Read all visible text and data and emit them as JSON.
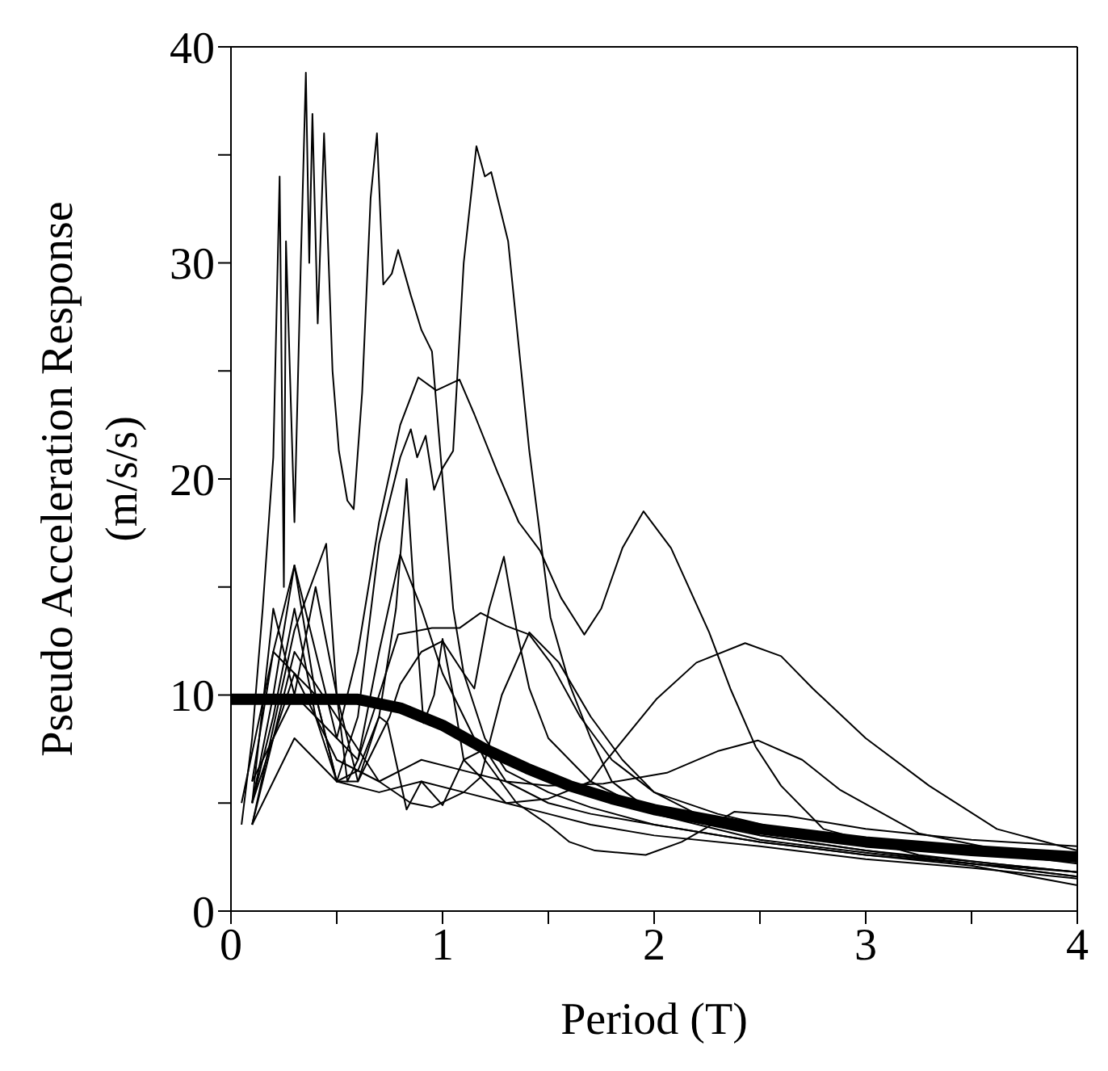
{
  "chart_data": {
    "type": "line",
    "xlabel": "Period (T)",
    "ylabel": "Pseudo Acceleration Response (m/s/s)",
    "xlim": [
      0,
      4
    ],
    "ylim": [
      0,
      40
    ],
    "xticks": [
      0,
      {
        "value": 0.5,
        "label": null
      },
      1,
      {
        "value": 1.5,
        "label": null
      },
      2,
      {
        "value": 2.5,
        "label": null
      },
      3,
      {
        "value": 3.5,
        "label": null
      },
      4
    ],
    "yticks": [
      0,
      {
        "value": 5,
        "label": null
      },
      10,
      {
        "value": 15,
        "label": null
      },
      20,
      {
        "value": 25,
        "label": null
      },
      30,
      {
        "value": 35,
        "label": null
      },
      40
    ],
    "marker": "none",
    "line_style": "solid",
    "series": [
      {
        "color": "#000000",
        "x": [
          0.05,
          0.1,
          0.15,
          0.2,
          0.23,
          0.25,
          0.26,
          0.3,
          0.33,
          0.354,
          0.37,
          0.385,
          0.41,
          0.44,
          0.48,
          0.51,
          0.55,
          0.58,
          0.62,
          0.66,
          0.69,
          0.72,
          0.76,
          0.79,
          0.85,
          0.9,
          0.95,
          1.0,
          1.05,
          1.1,
          1.2,
          1.3,
          1.5,
          1.7,
          2.0,
          2.5,
          3,
          3.5,
          4
        ],
        "values": [
          4,
          8,
          14,
          21,
          34,
          15,
          31,
          18,
          30,
          38.8,
          30,
          36.9,
          27.2,
          36,
          25,
          21.3,
          19,
          18.6,
          24,
          33,
          36,
          29,
          29.5,
          30.6,
          28.5,
          26.9,
          25.9,
          20,
          14,
          11,
          8,
          6.5,
          5.5,
          4.8,
          4,
          3.2,
          2.6,
          2.2,
          1.8
        ]
      },
      {
        "color": "#000000",
        "x": [
          0.05,
          0.2,
          0.4,
          0.5,
          0.6,
          0.7,
          0.8,
          0.85,
          0.88,
          0.92,
          0.96,
          1.0,
          1.05,
          1.1,
          1.16,
          1.2,
          1.23,
          1.31,
          1.41,
          1.51,
          1.6,
          1.7,
          1.8,
          2,
          2.5,
          3,
          3.5,
          4
        ],
        "values": [
          5,
          12,
          10,
          6,
          9,
          17,
          21,
          22.3,
          21,
          22,
          19.5,
          20.5,
          21.3,
          30,
          35.4,
          34,
          34.2,
          31,
          21.3,
          13.6,
          10.5,
          8,
          6,
          4.5,
          3.3,
          2.7,
          2.2,
          1.6
        ]
      },
      {
        "color": "#000000",
        "x": [
          0.1,
          0.3,
          0.5,
          0.6,
          0.7,
          0.8,
          0.885,
          0.97,
          1.08,
          1.15,
          1.26,
          1.36,
          1.46,
          1.56,
          1.67,
          1.75,
          1.85,
          1.95,
          2.08,
          2.26,
          2.36,
          2.48,
          2.6,
          2.8,
          3.25,
          3.6,
          4
        ],
        "values": [
          6,
          10,
          8,
          12,
          18,
          22.5,
          24.7,
          24.1,
          24.6,
          23,
          20.3,
          18,
          16.7,
          14.5,
          12.8,
          14,
          16.8,
          18.5,
          16.8,
          12.9,
          10.3,
          7.6,
          5.8,
          3.8,
          2.6,
          2.2,
          1.8
        ]
      },
      {
        "color": "#000000",
        "x": [
          0.1,
          0.3,
          0.5,
          0.7,
          0.9,
          1.1,
          1.3,
          1.5,
          1.7,
          1.76,
          2.01,
          2.2,
          2.43,
          2.6,
          2.75,
          3.0,
          3.3,
          3.62,
          4
        ],
        "values": [
          4,
          8,
          6,
          5.5,
          6,
          5.5,
          5,
          5.2,
          6,
          6.8,
          9.8,
          11.5,
          12.4,
          11.8,
          10.3,
          8,
          5.8,
          3.8,
          2.8
        ]
      },
      {
        "color": "#000000",
        "x": [
          0.1,
          0.3,
          0.5,
          0.7,
          0.9,
          1.1,
          1.3,
          1.5,
          1.76,
          2.06,
          2.3,
          2.49,
          2.7,
          2.88,
          3.25,
          3.6,
          4
        ],
        "values": [
          5,
          11,
          7,
          6,
          7,
          6.5,
          6,
          5.8,
          5.9,
          6.4,
          7.4,
          7.9,
          7,
          5.6,
          3.6,
          2.9,
          2.3
        ]
      },
      {
        "color": "#000000",
        "x": [
          0.1,
          0.2,
          0.3,
          0.4,
          0.5,
          0.6,
          0.7,
          0.75,
          0.8,
          0.9,
          1.0,
          1.1,
          1.15,
          1.22,
          1.29,
          1.35,
          1.41,
          1.5,
          1.7,
          2,
          2.5,
          3,
          3.5,
          4
        ],
        "values": [
          5,
          14,
          10,
          15,
          10,
          6,
          8,
          9,
          10.5,
          12,
          12.5,
          11,
          10.3,
          14,
          16.4,
          13,
          10.3,
          8,
          6,
          4.5,
          3.5,
          2.8,
          2.3,
          1.8
        ]
      },
      {
        "color": "#000000",
        "x": [
          0.1,
          0.2,
          0.3,
          0.4,
          0.5,
          0.6,
          0.7,
          0.79,
          0.95,
          1.08,
          1.18,
          1.3,
          1.41,
          1.51,
          1.65,
          1.8,
          2,
          2.3,
          2.6,
          3,
          3.5,
          4
        ],
        "values": [
          6,
          12,
          16,
          12,
          8,
          7,
          10,
          12.8,
          13.1,
          13.1,
          13.8,
          13.2,
          12.8,
          11.5,
          9,
          7,
          5.5,
          4.5,
          3.8,
          3.3,
          2.8,
          2.2
        ]
      },
      {
        "color": "#000000",
        "x": [
          0.1,
          0.3,
          0.5,
          0.7,
          0.85,
          0.95,
          1.1,
          1.18,
          1.28,
          1.41,
          1.55,
          1.7,
          1.85,
          2,
          2.2,
          2.5,
          3,
          3.5,
          4
        ],
        "values": [
          4,
          12,
          9,
          6,
          5,
          4.8,
          5.5,
          6.2,
          10,
          12.9,
          11.5,
          9,
          7,
          5.5,
          4.5,
          3.5,
          2.8,
          2.2,
          1.6
        ]
      },
      {
        "color": "#000000",
        "x": [
          0.1,
          0.2,
          0.3,
          0.4,
          0.5,
          0.6,
          0.7,
          0.78,
          0.83,
          0.87,
          0.91,
          0.96,
          1.0,
          1.05,
          1.1,
          1.2,
          1.3,
          1.5,
          1.7,
          2,
          2.5,
          3,
          3.5,
          4
        ],
        "values": [
          5,
          10,
          16,
          10,
          6,
          6.5,
          9,
          14,
          20,
          14,
          8.7,
          10,
          12.6,
          10,
          7,
          6,
          5,
          4.5,
          4,
          3.5,
          3,
          2.4,
          2,
          1.5
        ]
      },
      {
        "color": "#000000",
        "x": [
          0.1,
          0.3,
          0.45,
          0.5,
          0.55,
          0.6,
          0.7,
          0.8,
          0.9,
          1.0,
          1.1,
          1.2,
          1.35,
          1.5,
          1.6,
          1.72,
          1.96,
          2.13,
          2.38,
          2.63,
          3,
          3.5,
          4
        ],
        "values": [
          4,
          13,
          17,
          10,
          6,
          7,
          12,
          16.5,
          14,
          11,
          9,
          7,
          5,
          4,
          3.2,
          2.8,
          2.6,
          3.2,
          4.6,
          4.4,
          3.8,
          3.3,
          3.0
        ]
      },
      {
        "color": "#000000",
        "x": [
          0.1,
          0.2,
          0.3,
          0.4,
          0.5,
          0.6,
          0.7,
          0.74,
          0.83,
          0.9,
          1.0,
          1.1,
          1.2,
          1.3,
          1.5,
          1.7,
          2,
          2.5,
          3,
          3.5,
          4
        ],
        "values": [
          5,
          9,
          14,
          9,
          6,
          6,
          9,
          8.7,
          4.7,
          6,
          4.9,
          7,
          7.5,
          6,
          5,
          4.5,
          4,
          3.2,
          2.6,
          2.1,
          1.2
        ]
      },
      {
        "color": "#000000",
        "x": [
          0,
          0.2,
          0.4,
          0.6,
          0.8,
          1.0,
          1.2,
          1.4,
          1.6,
          1.8,
          2.0,
          2.5,
          3,
          3.5,
          4
        ],
        "values": [
          9.8,
          9.8,
          9.8,
          9.8,
          9.4,
          8.6,
          7.5,
          6.6,
          5.8,
          5.2,
          4.7,
          3.8,
          3.2,
          2.8,
          2.5
        ]
      }
    ]
  }
}
